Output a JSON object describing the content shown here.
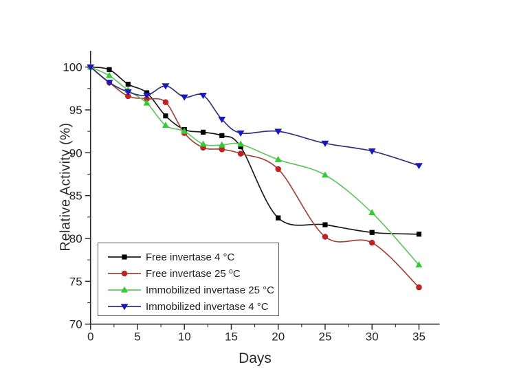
{
  "chart_data": {
    "type": "line",
    "title": "",
    "xlabel": "Days",
    "ylabel": "Relative Activity (%)",
    "xlim": [
      0,
      37.2
    ],
    "ylim": [
      70,
      101.9
    ],
    "grid": false,
    "legend_position": "lower-left-inside",
    "axis_color": "#2b2b2b",
    "x_major_ticks": [
      0,
      5,
      10,
      15,
      20,
      25,
      30,
      35
    ],
    "x_minor_ticks": [
      2.5,
      7.5,
      12.5,
      17.5,
      22.5,
      27.5,
      32.5
    ],
    "y_major_ticks": [
      70,
      75,
      80,
      85,
      90,
      95,
      100
    ],
    "y_minor_ticks": [
      72.5,
      77.5,
      82.5,
      87.5,
      92.5,
      97.5
    ],
    "x": [
      0,
      2,
      4,
      6,
      8,
      10,
      12,
      14,
      16,
      20,
      25,
      30,
      35
    ],
    "series": [
      {
        "name": "Free invertase 4 °C",
        "marker": "square",
        "marker_color": "#000000",
        "line_color": "#1a1a1a",
        "values": [
          100,
          99.7,
          98.0,
          97.0,
          94.3,
          92.7,
          92.4,
          92.0,
          90.7,
          82.4,
          81.6,
          80.7,
          80.5
        ]
      },
      {
        "name": "Free invertase 25 ⁰C",
        "marker": "circle",
        "marker_color": "#bf2424",
        "line_color": "#a2453a",
        "values": [
          100,
          98.2,
          96.6,
          96.3,
          95.9,
          92.3,
          90.6,
          90.4,
          89.9,
          88.1,
          80.2,
          79.5,
          74.3
        ]
      },
      {
        "name": "Immobilized invertase 25 °C",
        "marker": "triangle-up",
        "marker_color": "#33cc33",
        "line_color": "#63c663",
        "values": [
          100,
          99.0,
          97.3,
          95.8,
          93.2,
          92.5,
          91.0,
          90.9,
          91.0,
          89.2,
          87.4,
          83.0,
          76.9
        ]
      },
      {
        "name": "Immobilized invertase 4 °C",
        "marker": "triangle-down",
        "marker_color": "#1a1ab8",
        "line_color": "#32327d",
        "values": [
          100,
          98.2,
          97.1,
          96.7,
          97.8,
          96.5,
          96.7,
          93.9,
          92.3,
          92.5,
          91.1,
          90.2,
          88.5
        ]
      }
    ]
  }
}
